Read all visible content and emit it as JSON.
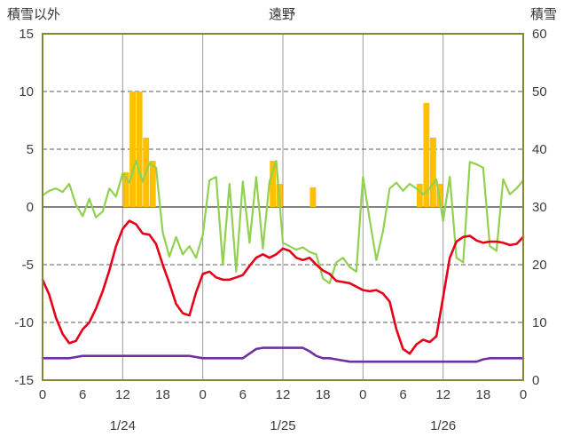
{
  "header": {
    "left_label": "積雪以外",
    "title": "遠野",
    "right_label": "積雪"
  },
  "chart_data": {
    "type": "line",
    "title": "遠野",
    "xlabel": "",
    "ylabel_left": "積雪以外",
    "ylabel_right": "積雪",
    "colors": {
      "frame": "#85883C",
      "grid": "#9a9a9a",
      "grid_dark": "#595959",
      "text": "#3d3d3d",
      "bar_orange": "#FFC000",
      "line_green": "#92D050",
      "line_red": "#E60019",
      "line_purple": "#7030A0"
    },
    "left_axis": {
      "min": -15,
      "max": 15,
      "ticks": [
        15,
        10,
        5,
        0,
        -5,
        -10,
        -15
      ],
      "dashed_gridlines": [
        10,
        5,
        -5,
        -10
      ],
      "zero_line": 0
    },
    "right_axis": {
      "min": 0,
      "max": 60,
      "ticks": [
        60,
        50,
        40,
        30,
        20,
        10,
        0
      ]
    },
    "x_axis": {
      "min_hour": 0,
      "max_hour": 72,
      "tick_hours": [
        0,
        6,
        12,
        18,
        24,
        30,
        36,
        42,
        48,
        54,
        60,
        66,
        72
      ],
      "tick_labels": [
        "0",
        "6",
        "12",
        "18",
        "0",
        "6",
        "12",
        "18",
        "0",
        "6",
        "12",
        "18",
        "0"
      ],
      "gridline_hours": [
        12,
        24,
        36,
        48,
        60
      ],
      "date_labels": [
        {
          "label": "1/24",
          "center_hour": 12
        },
        {
          "label": "1/25",
          "center_hour": 36
        },
        {
          "label": "1/26",
          "center_hour": 60
        }
      ]
    },
    "series": [
      {
        "name": "bars-orange",
        "type": "bar",
        "axis": "left",
        "color": "#FFC000",
        "width": 0,
        "values": [
          0,
          0,
          0,
          0,
          0,
          0,
          0,
          0,
          0,
          0,
          0,
          0,
          3,
          10,
          10,
          6,
          4,
          0,
          0,
          0,
          0,
          0,
          0,
          0,
          0,
          0,
          0,
          0,
          0,
          0,
          0,
          0,
          0,
          0,
          4,
          2,
          0,
          0,
          0,
          0,
          1.7,
          0,
          0,
          0,
          0,
          0,
          0,
          0,
          0,
          0,
          0,
          0,
          0,
          0,
          0,
          0,
          2,
          9,
          6,
          2,
          0,
          0,
          0,
          0,
          0,
          0,
          0,
          0,
          0,
          0,
          0,
          0,
          0
        ]
      },
      {
        "name": "line-green",
        "type": "line",
        "axis": "left",
        "color": "#92D050",
        "width": 2.2,
        "values": [
          1.0,
          1.4,
          1.6,
          1.3,
          2.0,
          0.2,
          -0.8,
          0.7,
          -0.9,
          -0.4,
          1.6,
          0.9,
          2.9,
          2.1,
          4.0,
          2.2,
          3.8,
          3.4,
          -2.2,
          -4.3,
          -2.6,
          -4.1,
          -3.4,
          -4.4,
          -2.4,
          2.3,
          2.6,
          -5.0,
          2.0,
          -5.6,
          2.2,
          -3.1,
          2.6,
          -3.6,
          2.2,
          4.0,
          -3.1,
          -3.4,
          -3.7,
          -3.5,
          -3.9,
          -4.1,
          -6.2,
          -6.6,
          -4.8,
          -4.4,
          -5.2,
          -5.6,
          2.6,
          -1.1,
          -4.6,
          -2.1,
          1.6,
          2.1,
          1.4,
          2.0,
          1.6,
          1.1,
          1.6,
          2.4,
          -1.2,
          2.6,
          -4.4,
          -4.8,
          3.9,
          3.7,
          3.4,
          -3.4,
          -3.8,
          2.4,
          1.1,
          1.6,
          2.3
        ]
      },
      {
        "name": "line-red",
        "type": "line",
        "axis": "left",
        "color": "#E60019",
        "width": 2.6,
        "values": [
          -6.3,
          -7.6,
          -9.6,
          -11.0,
          -11.8,
          -11.6,
          -10.6,
          -10.0,
          -8.8,
          -7.3,
          -5.5,
          -3.4,
          -1.9,
          -1.2,
          -1.5,
          -2.3,
          -2.4,
          -3.2,
          -5.0,
          -6.6,
          -8.4,
          -9.2,
          -9.4,
          -7.4,
          -5.8,
          -5.6,
          -6.1,
          -6.3,
          -6.3,
          -6.1,
          -5.9,
          -5.1,
          -4.4,
          -4.1,
          -4.4,
          -4.1,
          -3.6,
          -3.8,
          -4.4,
          -4.6,
          -4.4,
          -5.0,
          -5.5,
          -5.8,
          -6.4,
          -6.5,
          -6.6,
          -6.9,
          -7.2,
          -7.3,
          -7.2,
          -7.5,
          -8.2,
          -10.6,
          -12.3,
          -12.7,
          -11.9,
          -11.5,
          -11.7,
          -11.2,
          -7.8,
          -4.4,
          -3.0,
          -2.6,
          -2.5,
          -2.9,
          -3.1,
          -3.0,
          -3.0,
          -3.1,
          -3.3,
          -3.2,
          -2.6
        ]
      },
      {
        "name": "line-purple",
        "type": "line",
        "axis": "left",
        "color": "#7030A0",
        "width": 2.6,
        "values": [
          -13.1,
          -13.1,
          -13.1,
          -13.1,
          -13.1,
          -13.0,
          -12.9,
          -12.9,
          -12.9,
          -12.9,
          -12.9,
          -12.9,
          -12.9,
          -12.9,
          -12.9,
          -12.9,
          -12.9,
          -12.9,
          -12.9,
          -12.9,
          -12.9,
          -12.9,
          -12.9,
          -13.0,
          -13.1,
          -13.1,
          -13.1,
          -13.1,
          -13.1,
          -13.1,
          -13.1,
          -12.7,
          -12.3,
          -12.2,
          -12.2,
          -12.2,
          -12.2,
          -12.2,
          -12.2,
          -12.2,
          -12.5,
          -12.9,
          -13.1,
          -13.1,
          -13.2,
          -13.3,
          -13.4,
          -13.4,
          -13.4,
          -13.4,
          -13.4,
          -13.4,
          -13.4,
          -13.4,
          -13.4,
          -13.4,
          -13.4,
          -13.4,
          -13.4,
          -13.4,
          -13.4,
          -13.4,
          -13.4,
          -13.4,
          -13.4,
          -13.4,
          -13.2,
          -13.1,
          -13.1,
          -13.1,
          -13.1,
          -13.1,
          -13.1
        ]
      }
    ]
  }
}
